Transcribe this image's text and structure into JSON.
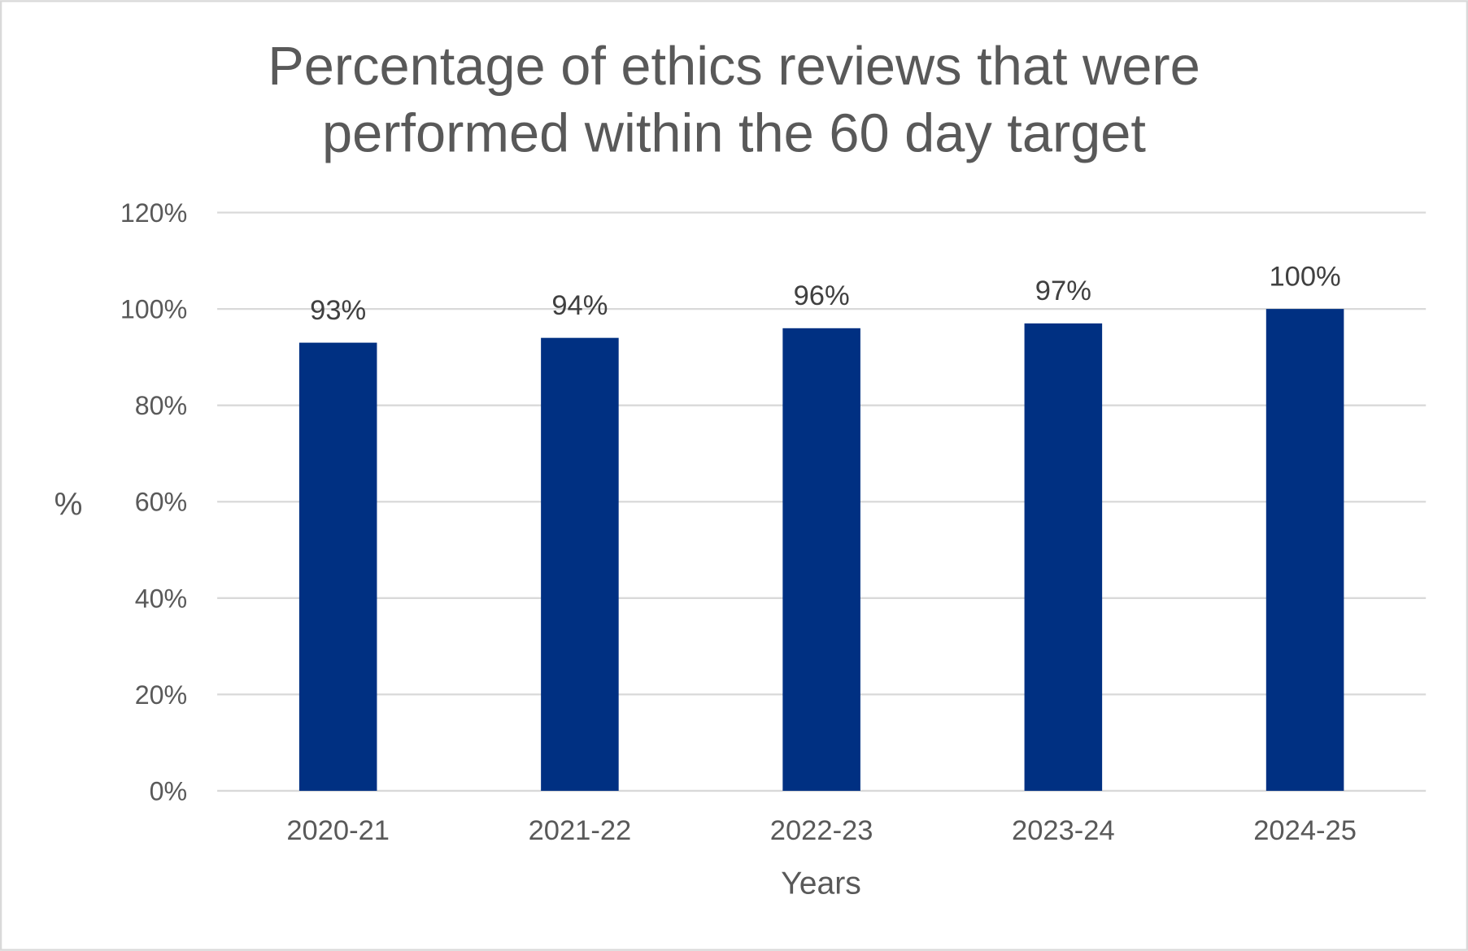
{
  "chart_data": {
    "type": "bar",
    "title": [
      "Percentage of ethics reviews that were",
      "performed within the 60 day target"
    ],
    "xlabel": "Years",
    "ylabel": "%",
    "categories": [
      "2020-21",
      "2021-22",
      "2022-23",
      "2023-24",
      "2024-25"
    ],
    "values": [
      93,
      94,
      96,
      97,
      100
    ],
    "data_labels": [
      "93%",
      "94%",
      "96%",
      "97%",
      "100%"
    ],
    "ylim": [
      0,
      120
    ],
    "yticks": [
      0,
      20,
      40,
      60,
      80,
      100,
      120
    ],
    "ytick_labels": [
      "0%",
      "20%",
      "40%",
      "60%",
      "80%",
      "100%",
      "120%"
    ],
    "grid": true,
    "legend": "none",
    "colors": {
      "bar": "#003082",
      "grid": "#d9d9d9",
      "text": "#595959",
      "border": "#d9d9d9"
    }
  }
}
